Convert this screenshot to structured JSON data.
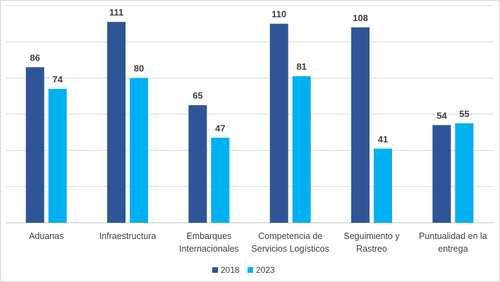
{
  "chart_data": {
    "type": "bar",
    "categories": [
      [
        "Aduanas"
      ],
      [
        "Infraestructura"
      ],
      [
        "Embarques",
        "Internacionales"
      ],
      [
        "Competencia de",
        "Servicios Logísticos"
      ],
      [
        "Seguimiento y",
        "Rastreo"
      ],
      [
        "Puntualidad en la",
        "entrega"
      ]
    ],
    "series": [
      {
        "name": "2018",
        "color": "#2f5597",
        "values": [
          86,
          111,
          65,
          110,
          108,
          54
        ]
      },
      {
        "name": "2023",
        "color": "#00b0f0",
        "values": [
          74,
          80,
          47,
          81,
          41,
          55
        ]
      }
    ],
    "ylim": [
      0,
      120
    ],
    "ytick_step": 20,
    "grid": true,
    "legend_position": "bottom"
  }
}
